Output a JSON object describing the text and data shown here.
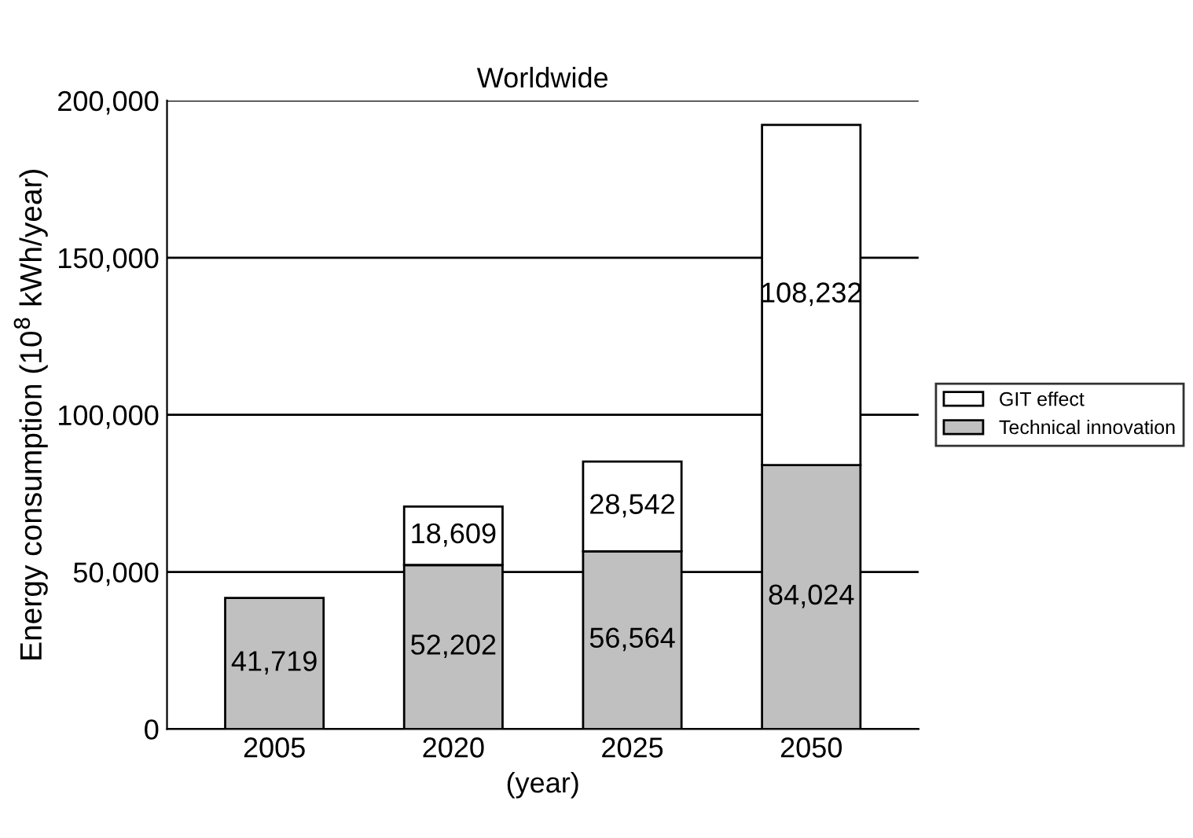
{
  "chart_data": {
    "type": "bar",
    "title": "Worldwide",
    "xlabel": "(year)",
    "ylabel": "Energy consumption (10$^{8}$ kWh/year)",
    "categories": [
      "2005",
      "2020",
      "2025",
      "2050"
    ],
    "stacked": true,
    "series": [
      {
        "name": "Technical innovation",
        "color": "#c0c0c0",
        "values": [
          41719,
          52202,
          56564,
          84024
        ],
        "value_labels": [
          "41,719",
          "52,202",
          "56,564",
          "84,024"
        ]
      },
      {
        "name": "GIT effect",
        "color": "#ffffff",
        "values": [
          null,
          18609,
          28542,
          108232
        ],
        "value_labels": [
          null,
          "18,609",
          "28,542",
          "108,232"
        ]
      }
    ],
    "ylim": [
      0,
      200000
    ],
    "yticks": [
      0,
      {
        "value": 50000,
        "label": "50,000"
      },
      {
        "value": 100000,
        "label": "100,000"
      },
      {
        "value": 150000,
        "label": "150,000"
      },
      {
        "value": 200000,
        "label": "200,000"
      }
    ],
    "grid": "y",
    "legend": "right"
  }
}
